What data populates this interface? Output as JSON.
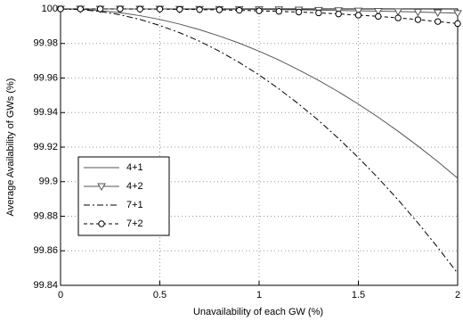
{
  "chart_data": {
    "type": "line",
    "xlabel": "Unavailability of each GW (%)",
    "ylabel": "Average Availability of GWs (%)",
    "x": [
      0,
      0.1,
      0.2,
      0.3,
      0.4,
      0.5,
      0.6,
      0.7,
      0.8,
      0.9,
      1,
      1.1,
      1.2,
      1.3,
      1.4,
      1.5,
      1.6,
      1.7,
      1.8,
      1.9,
      2
    ],
    "series": [
      {
        "name": "4+1",
        "color": "#555555",
        "style": "solid",
        "marker": "none",
        "values": [
          100,
          99.9998,
          99.999,
          99.9978,
          99.9961,
          99.9939,
          99.9912,
          99.988,
          99.9843,
          99.9802,
          99.9755,
          99.9704,
          99.9647,
          99.9586,
          99.952,
          99.9449,
          99.9373,
          99.9292,
          99.9206,
          99.9116,
          99.902
        ]
      },
      {
        "name": "4+2",
        "color": "#555555",
        "style": "solid",
        "marker": "triangle-down",
        "values": [
          100,
          100,
          100,
          100,
          100,
          100,
          99.9999,
          99.9999,
          99.9998,
          99.9998,
          99.9997,
          99.9996,
          99.9995,
          99.9993,
          99.9991,
          99.9989,
          99.9987,
          99.9985,
          99.9982,
          99.9979,
          99.9975
        ]
      },
      {
        "name": "7+1",
        "color": "#000000",
        "style": "dashdot",
        "marker": "none",
        "values": [
          100,
          99.9996,
          99.9985,
          99.9966,
          99.9939,
          99.9904,
          99.9862,
          99.9813,
          99.9755,
          99.969,
          99.9618,
          99.9537,
          99.9449,
          99.9354,
          99.925,
          99.9139,
          99.9021,
          99.8895,
          99.8761,
          99.8619,
          99.847
        ]
      },
      {
        "name": "7+2",
        "color": "#000000",
        "style": "dashed",
        "marker": "circle",
        "values": [
          100,
          100,
          100,
          100,
          99.9999,
          99.9999,
          99.9998,
          99.9996,
          99.9995,
          99.9992,
          99.9989,
          99.9986,
          99.9982,
          99.9977,
          99.9971,
          99.9964,
          99.9957,
          99.9948,
          99.9938,
          99.9927,
          99.9915
        ]
      }
    ],
    "xlim": [
      0,
      2
    ],
    "xticks": [
      0,
      0.5,
      1,
      1.5,
      2
    ],
    "ylim": [
      99.84,
      100
    ],
    "yticks": [
      99.84,
      99.86,
      99.88,
      99.9,
      99.92,
      99.94,
      99.96,
      99.98,
      100
    ],
    "grid": true,
    "legend": "center left"
  }
}
